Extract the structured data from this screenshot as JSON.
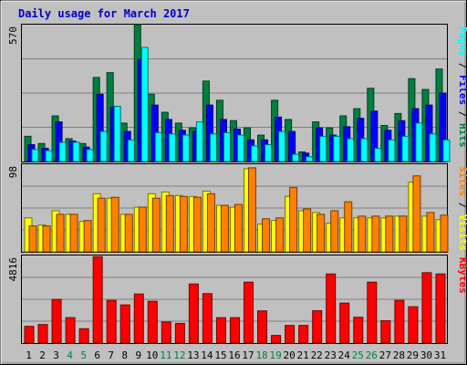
{
  "chart_data": {
    "type": "bar",
    "title": "Daily usage for March 2017",
    "categories": [
      "1",
      "2",
      "3",
      "4",
      "5",
      "6",
      "7",
      "8",
      "9",
      "10",
      "11",
      "12",
      "13",
      "14",
      "15",
      "16",
      "17",
      "18",
      "19",
      "20",
      "21",
      "22",
      "23",
      "24",
      "25",
      "26",
      "27",
      "28",
      "29",
      "30",
      "31"
    ],
    "weekend_days": [
      "4",
      "5",
      "11",
      "12",
      "18",
      "19",
      "25",
      "26"
    ],
    "colors": {
      "hits": "#008040",
      "files": "#0000ff",
      "pages": "#00ffff",
      "visits": "#ffff00",
      "sites": "#ff8000",
      "kbytes": "#ff0000",
      "title": "#0000cc",
      "weekday_label": "#000000",
      "weekend_label": "#008040"
    },
    "panels": [
      {
        "id": "requests",
        "ymax_label": "570",
        "ylim": [
          0,
          570
        ],
        "legend": [
          {
            "label": "Hits",
            "color": "#008040"
          },
          {
            "label": "Files",
            "color": "#0000ff"
          },
          {
            "label": "Pages",
            "color": "#00ffff"
          }
        ],
        "series": [
          {
            "name": "Hits",
            "values": [
              105,
              75,
              190,
              95,
              75,
              350,
              370,
              160,
              570,
              280,
              205,
              160,
              140,
              335,
              255,
              170,
              140,
              110,
              255,
              175,
              40,
              165,
              140,
              190,
              220,
              305,
              150,
              200,
              345,
              300,
              385
            ]
          },
          {
            "name": "Files",
            "values": [
              70,
              55,
              165,
              85,
              60,
              280,
              225,
              125,
              425,
              235,
              175,
              130,
              125,
              235,
              175,
              135,
              90,
              90,
              185,
              125,
              35,
              140,
              110,
              145,
              180,
              210,
              130,
              170,
              220,
              235,
              285
            ]
          },
          {
            "name": "Pages",
            "values": [
              50,
              45,
              80,
              80,
              50,
              125,
              230,
              90,
              475,
              120,
              115,
              110,
              165,
              115,
              120,
              110,
              65,
              70,
              125,
              30,
              20,
              105,
              105,
              95,
              95,
              55,
              90,
              105,
              160,
              115,
              90
            ]
          }
        ]
      },
      {
        "id": "visitors",
        "ymax_label": "98",
        "ylim": [
          0,
          98
        ],
        "legend": [
          {
            "label": "Visits",
            "color": "#ffff00"
          },
          {
            "label": "Sites",
            "color": "#ff8000"
          }
        ],
        "series": [
          {
            "name": "Visits",
            "values": [
              38,
              30,
              46,
              42,
              34,
              65,
              60,
              42,
              50,
              65,
              67,
              63,
              62,
              68,
              52,
              50,
              93,
              31,
              35,
              62,
              46,
              44,
              32,
              38,
              38,
              38,
              38,
              40,
              78,
              40,
              36
            ]
          },
          {
            "name": "Sites",
            "values": [
              29,
              29,
              42,
              42,
              35,
              60,
              61,
              42,
              50,
              60,
              63,
              62,
              61,
              65,
              52,
              53,
              94,
              37,
              38,
              72,
              48,
              42,
              46,
              56,
              40,
              40,
              40,
              40,
              85,
              44,
              41
            ]
          }
        ]
      },
      {
        "id": "kbytes",
        "ymax_label": "4816",
        "ylim": [
          0,
          4816
        ],
        "legend": [
          {
            "label": "KBytes",
            "color": "#ff0000"
          }
        ],
        "series": [
          {
            "name": "KBytes",
            "values": [
              920,
              1020,
              2400,
              1400,
              790,
              4750,
              2350,
              2100,
              2700,
              2300,
              1160,
              1080,
              3250,
              2720,
              1400,
              1400,
              3350,
              1770,
              420,
              970,
              970,
              1780,
              3800,
              2200,
              1420,
              3350,
              1230,
              2350,
              2000,
              3870,
              3800
            ]
          }
        ]
      }
    ]
  }
}
